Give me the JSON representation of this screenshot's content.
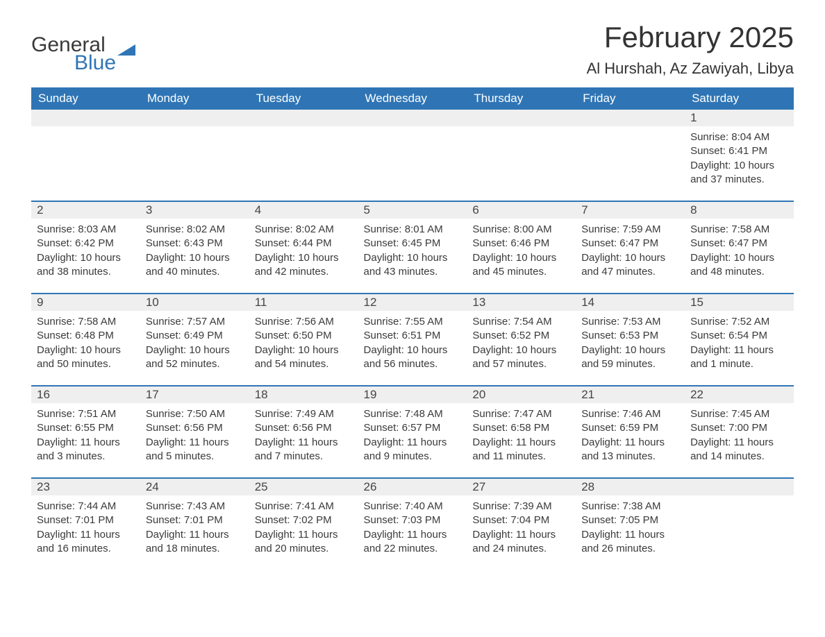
{
  "brand": {
    "text1": "General",
    "text2": "Blue",
    "accent": "#2f75b5"
  },
  "title": "February 2025",
  "location": "Al Hurshah, Az Zawiyah, Libya",
  "colors": {
    "header_bg": "#2f75b5",
    "header_text": "#ffffff",
    "row_stripe": "#efefef",
    "divider": "#2f75b5",
    "body_text": "#3a3a3a",
    "page_bg": "#ffffff"
  },
  "fonts": {
    "title_pt": 42,
    "location_pt": 22,
    "header_pt": 17,
    "body_pt": 15
  },
  "weekdays": [
    "Sunday",
    "Monday",
    "Tuesday",
    "Wednesday",
    "Thursday",
    "Friday",
    "Saturday"
  ],
  "weeks": [
    [
      null,
      null,
      null,
      null,
      null,
      null,
      {
        "d": "1",
        "sr": "Sunrise: 8:04 AM",
        "ss": "Sunset: 6:41 PM",
        "dl": "Daylight: 10 hours and 37 minutes."
      }
    ],
    [
      {
        "d": "2",
        "sr": "Sunrise: 8:03 AM",
        "ss": "Sunset: 6:42 PM",
        "dl": "Daylight: 10 hours and 38 minutes."
      },
      {
        "d": "3",
        "sr": "Sunrise: 8:02 AM",
        "ss": "Sunset: 6:43 PM",
        "dl": "Daylight: 10 hours and 40 minutes."
      },
      {
        "d": "4",
        "sr": "Sunrise: 8:02 AM",
        "ss": "Sunset: 6:44 PM",
        "dl": "Daylight: 10 hours and 42 minutes."
      },
      {
        "d": "5",
        "sr": "Sunrise: 8:01 AM",
        "ss": "Sunset: 6:45 PM",
        "dl": "Daylight: 10 hours and 43 minutes."
      },
      {
        "d": "6",
        "sr": "Sunrise: 8:00 AM",
        "ss": "Sunset: 6:46 PM",
        "dl": "Daylight: 10 hours and 45 minutes."
      },
      {
        "d": "7",
        "sr": "Sunrise: 7:59 AM",
        "ss": "Sunset: 6:47 PM",
        "dl": "Daylight: 10 hours and 47 minutes."
      },
      {
        "d": "8",
        "sr": "Sunrise: 7:58 AM",
        "ss": "Sunset: 6:47 PM",
        "dl": "Daylight: 10 hours and 48 minutes."
      }
    ],
    [
      {
        "d": "9",
        "sr": "Sunrise: 7:58 AM",
        "ss": "Sunset: 6:48 PM",
        "dl": "Daylight: 10 hours and 50 minutes."
      },
      {
        "d": "10",
        "sr": "Sunrise: 7:57 AM",
        "ss": "Sunset: 6:49 PM",
        "dl": "Daylight: 10 hours and 52 minutes."
      },
      {
        "d": "11",
        "sr": "Sunrise: 7:56 AM",
        "ss": "Sunset: 6:50 PM",
        "dl": "Daylight: 10 hours and 54 minutes."
      },
      {
        "d": "12",
        "sr": "Sunrise: 7:55 AM",
        "ss": "Sunset: 6:51 PM",
        "dl": "Daylight: 10 hours and 56 minutes."
      },
      {
        "d": "13",
        "sr": "Sunrise: 7:54 AM",
        "ss": "Sunset: 6:52 PM",
        "dl": "Daylight: 10 hours and 57 minutes."
      },
      {
        "d": "14",
        "sr": "Sunrise: 7:53 AM",
        "ss": "Sunset: 6:53 PM",
        "dl": "Daylight: 10 hours and 59 minutes."
      },
      {
        "d": "15",
        "sr": "Sunrise: 7:52 AM",
        "ss": "Sunset: 6:54 PM",
        "dl": "Daylight: 11 hours and 1 minute."
      }
    ],
    [
      {
        "d": "16",
        "sr": "Sunrise: 7:51 AM",
        "ss": "Sunset: 6:55 PM",
        "dl": "Daylight: 11 hours and 3 minutes."
      },
      {
        "d": "17",
        "sr": "Sunrise: 7:50 AM",
        "ss": "Sunset: 6:56 PM",
        "dl": "Daylight: 11 hours and 5 minutes."
      },
      {
        "d": "18",
        "sr": "Sunrise: 7:49 AM",
        "ss": "Sunset: 6:56 PM",
        "dl": "Daylight: 11 hours and 7 minutes."
      },
      {
        "d": "19",
        "sr": "Sunrise: 7:48 AM",
        "ss": "Sunset: 6:57 PM",
        "dl": "Daylight: 11 hours and 9 minutes."
      },
      {
        "d": "20",
        "sr": "Sunrise: 7:47 AM",
        "ss": "Sunset: 6:58 PM",
        "dl": "Daylight: 11 hours and 11 minutes."
      },
      {
        "d": "21",
        "sr": "Sunrise: 7:46 AM",
        "ss": "Sunset: 6:59 PM",
        "dl": "Daylight: 11 hours and 13 minutes."
      },
      {
        "d": "22",
        "sr": "Sunrise: 7:45 AM",
        "ss": "Sunset: 7:00 PM",
        "dl": "Daylight: 11 hours and 14 minutes."
      }
    ],
    [
      {
        "d": "23",
        "sr": "Sunrise: 7:44 AM",
        "ss": "Sunset: 7:01 PM",
        "dl": "Daylight: 11 hours and 16 minutes."
      },
      {
        "d": "24",
        "sr": "Sunrise: 7:43 AM",
        "ss": "Sunset: 7:01 PM",
        "dl": "Daylight: 11 hours and 18 minutes."
      },
      {
        "d": "25",
        "sr": "Sunrise: 7:41 AM",
        "ss": "Sunset: 7:02 PM",
        "dl": "Daylight: 11 hours and 20 minutes."
      },
      {
        "d": "26",
        "sr": "Sunrise: 7:40 AM",
        "ss": "Sunset: 7:03 PM",
        "dl": "Daylight: 11 hours and 22 minutes."
      },
      {
        "d": "27",
        "sr": "Sunrise: 7:39 AM",
        "ss": "Sunset: 7:04 PM",
        "dl": "Daylight: 11 hours and 24 minutes."
      },
      {
        "d": "28",
        "sr": "Sunrise: 7:38 AM",
        "ss": "Sunset: 7:05 PM",
        "dl": "Daylight: 11 hours and 26 minutes."
      },
      null
    ]
  ]
}
